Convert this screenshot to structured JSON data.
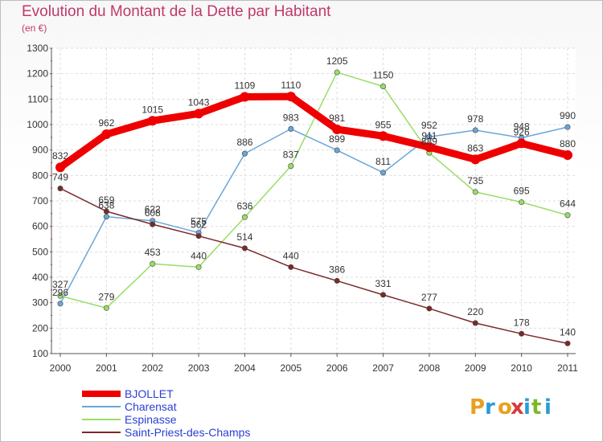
{
  "chart_data": {
    "type": "line",
    "title": "Evolution du Montant de la Dette par Habitant",
    "subtitle": "(en €)",
    "x": [
      "2000",
      "2001",
      "2002",
      "2003",
      "2004",
      "2005",
      "2006",
      "2007",
      "2008",
      "2009",
      "2010",
      "2011"
    ],
    "ylim": [
      100,
      1300
    ],
    "yticks": [
      100,
      200,
      300,
      400,
      500,
      600,
      700,
      800,
      900,
      1000,
      1100,
      1200,
      1300
    ],
    "grid": true,
    "legend_position": "bottom-left",
    "series": [
      {
        "name": "BJOLLET",
        "color": "#ee0000",
        "values": [
          832,
          962,
          1015,
          1043,
          1109,
          1110,
          981,
          955,
          911,
          863,
          926,
          880
        ]
      },
      {
        "name": "Charensat",
        "color": "#6aa6d8",
        "values": [
          296,
          638,
          622,
          575,
          886,
          983,
          899,
          811,
          952,
          978,
          948,
          990
        ]
      },
      {
        "name": "Espinasse",
        "color": "#99dd66",
        "values": [
          327,
          279,
          453,
          440,
          636,
          837,
          1205,
          1150,
          889,
          735,
          695,
          644
        ]
      },
      {
        "name": "Saint-Priest-des-Champs",
        "color": "#7a2a2a",
        "values": [
          749,
          659,
          608,
          562,
          514,
          440,
          386,
          331,
          277,
          220,
          178,
          140
        ]
      }
    ]
  },
  "logo": {
    "text": "Proxiti"
  }
}
